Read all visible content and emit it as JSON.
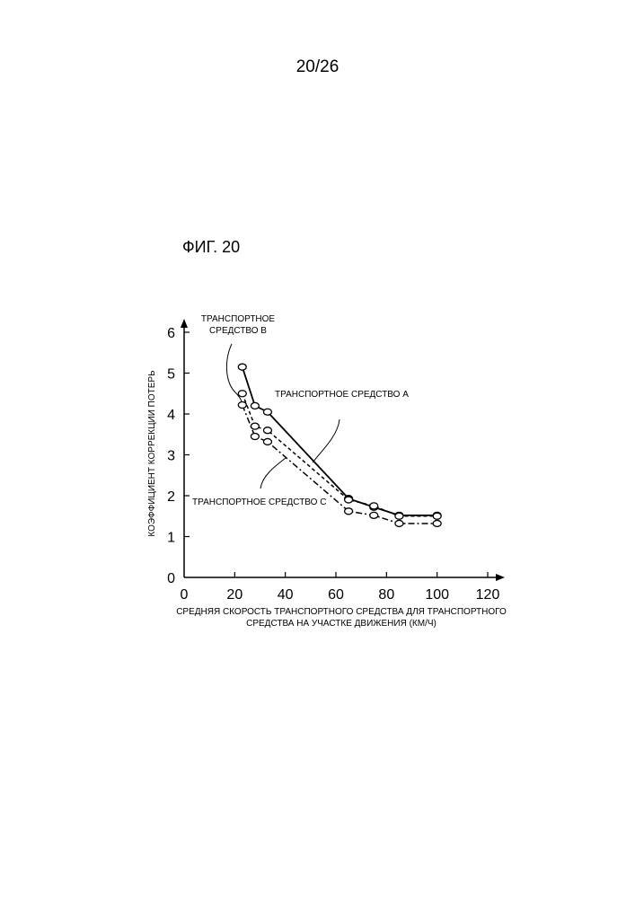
{
  "page": {
    "number": "20/26",
    "figure_title": "ФИГ. 20"
  },
  "chart_data": {
    "type": "line",
    "xlabel_lines": [
      "СРЕДНЯЯ СКОРОСТЬ ТРАНСПОРТНОГО СРЕДСТВА ДЛЯ ТРАНСПОРТНОГО",
      "СРЕДСТВА НА УЧАСТКЕ ДВИЖЕНИЯ (КМ/Ч)"
    ],
    "ylabel": "КОЭФФИЦИЕНТ КОРРЕКЦИИ ПОТЕРЬ",
    "xlim": [
      0,
      120
    ],
    "ylim": [
      0,
      6
    ],
    "xticks": [
      "0",
      "20",
      "40",
      "60",
      "80",
      "100",
      "120"
    ],
    "yticks": [
      "0",
      "1",
      "2",
      "3",
      "4",
      "5",
      "6"
    ],
    "grid": false,
    "series": [
      {
        "name": "ТРАНСПОРТНОЕ СРЕДСТВО A",
        "style": "solid",
        "x": [
          23,
          28,
          33,
          65,
          75,
          85,
          100
        ],
        "y": [
          5.15,
          4.2,
          4.05,
          1.93,
          1.72,
          1.52,
          1.52
        ]
      },
      {
        "name": "ТРАНСПОРТНОЕ СРЕДСТВО B",
        "style": "dashed",
        "x": [
          23,
          28,
          33,
          65,
          75,
          85,
          100
        ],
        "y": [
          4.5,
          3.7,
          3.6,
          1.9,
          1.75,
          1.5,
          1.5
        ]
      },
      {
        "name": "ТРАНСПОРТНОЕ СРЕДСТВО C",
        "style": "dashdot",
        "x": [
          23,
          28,
          33,
          65,
          75,
          85,
          100
        ],
        "y": [
          4.22,
          3.45,
          3.32,
          1.62,
          1.52,
          1.32,
          1.32
        ]
      }
    ],
    "annotations": {
      "a": "ТРАНСПОРТНОЕ СРЕДСТВО A",
      "b_line1": "ТРАНСПОРТНОЕ",
      "b_line2": "СРЕДСТВО B",
      "c": "ТРАНСПОРТНОЕ СРЕДСТВО C"
    }
  }
}
